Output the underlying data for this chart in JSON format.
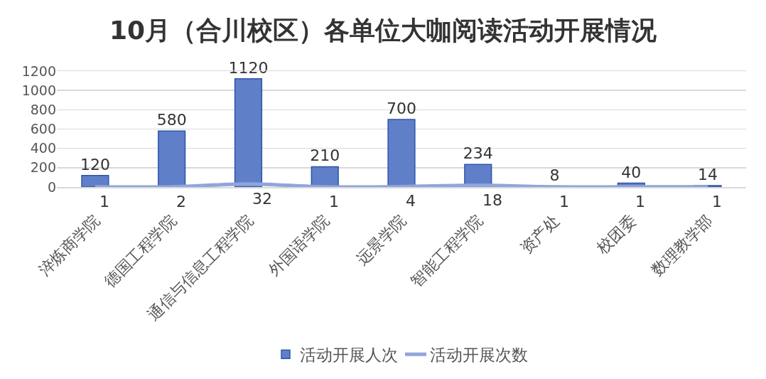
{
  "chart_data": {
    "type": "bar",
    "title": "10月（合川校区）各单位大咖阅读活动开展情况",
    "categories": [
      "淬炼商学院",
      "德国工程学院",
      "通信与信息工程学院",
      "外国语学院",
      "远景学院",
      "智能工程学院",
      "资产处",
      "校团委",
      "数理教学部"
    ],
    "series": [
      {
        "name": "活动开展人次",
        "color": "#5f7fc8",
        "values": [
          120,
          580,
          1120,
          210,
          700,
          234,
          8,
          40,
          14
        ]
      },
      {
        "name": "活动开展次数",
        "type": "line",
        "color": "#8fa5dc",
        "values": [
          1,
          2,
          32,
          1,
          4,
          18,
          1,
          1,
          1
        ]
      }
    ],
    "ylim": [
      0,
      1200
    ],
    "yticks": [
      0,
      200,
      400,
      600,
      800,
      1000,
      1200
    ],
    "grid": "y",
    "legend": "bottom",
    "data_labels": true
  }
}
